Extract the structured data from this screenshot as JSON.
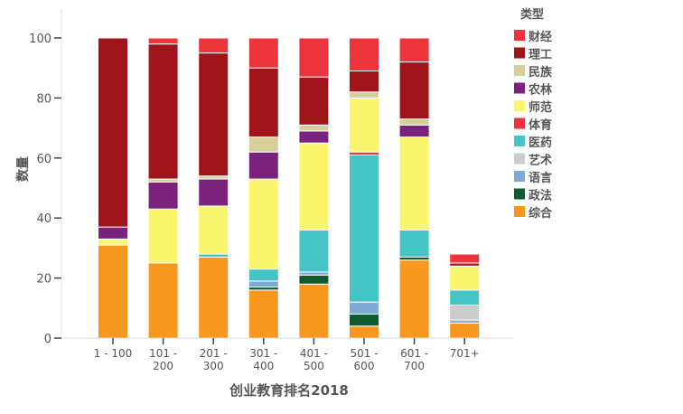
{
  "chart_data": {
    "type": "bar",
    "stacked": true,
    "title": "",
    "xlabel": "创业教育排名2018",
    "ylabel": "数量",
    "ylim": [
      0,
      100
    ],
    "yticks": [
      "0",
      "20",
      "40",
      "60",
      "80",
      "100"
    ],
    "grid": false,
    "legend_title": "类型",
    "legend_position": "right",
    "categories": [
      "1 - 100",
      "101 - 200",
      "201 - 300",
      "301 - 400",
      "401 - 500",
      "501 - 600",
      "601 - 700",
      "701+"
    ],
    "category_lines": [
      [
        "1 - 100"
      ],
      [
        "101 -",
        "200"
      ],
      [
        "201 -",
        "300"
      ],
      [
        "301 -",
        "400"
      ],
      [
        "401 -",
        "500"
      ],
      [
        "501 -",
        "600"
      ],
      [
        "601 -",
        "700"
      ],
      [
        "701+"
      ]
    ],
    "series": [
      {
        "name": "综合",
        "color": "#f7971e",
        "values": [
          31,
          25,
          27,
          16,
          18,
          4,
          26,
          5
        ]
      },
      {
        "name": "政法",
        "color": "#0f5a2e",
        "values": [
          0,
          0,
          0,
          1,
          3,
          4,
          1,
          0
        ]
      },
      {
        "name": "语言",
        "color": "#7da9d6",
        "values": [
          0,
          0,
          0,
          2,
          1,
          4,
          0,
          1
        ]
      },
      {
        "name": "艺术",
        "color": "#cccccc",
        "values": [
          0,
          0,
          0,
          0,
          0,
          0,
          0,
          5
        ]
      },
      {
        "name": "医药",
        "color": "#45c4c6",
        "values": [
          0,
          0,
          1,
          4,
          14,
          49,
          9,
          5
        ]
      },
      {
        "name": "体育",
        "color": "#ee343b",
        "values": [
          0,
          0,
          0,
          0,
          0,
          1,
          0,
          0
        ]
      },
      {
        "name": "师范",
        "color": "#f9f56c",
        "values": [
          2,
          18,
          16,
          30,
          29,
          18,
          31,
          8
        ]
      },
      {
        "name": "农林",
        "color": "#7b237c",
        "values": [
          4,
          9,
          9,
          9,
          4,
          0,
          4,
          0
        ]
      },
      {
        "name": "民族",
        "color": "#d6cf98",
        "values": [
          0,
          1,
          1,
          5,
          2,
          2,
          2,
          0
        ]
      },
      {
        "name": "理工",
        "color": "#a0151b",
        "values": [
          63,
          45,
          41,
          23,
          16,
          7,
          19,
          1
        ]
      },
      {
        "name": "财经",
        "color": "#ee343b",
        "values": [
          0,
          2,
          5,
          10,
          13,
          11,
          8,
          3
        ]
      }
    ],
    "legend_order": [
      "财经",
      "理工",
      "民族",
      "农林",
      "师范",
      "体育",
      "医药",
      "艺术",
      "语言",
      "政法",
      "综合"
    ]
  }
}
